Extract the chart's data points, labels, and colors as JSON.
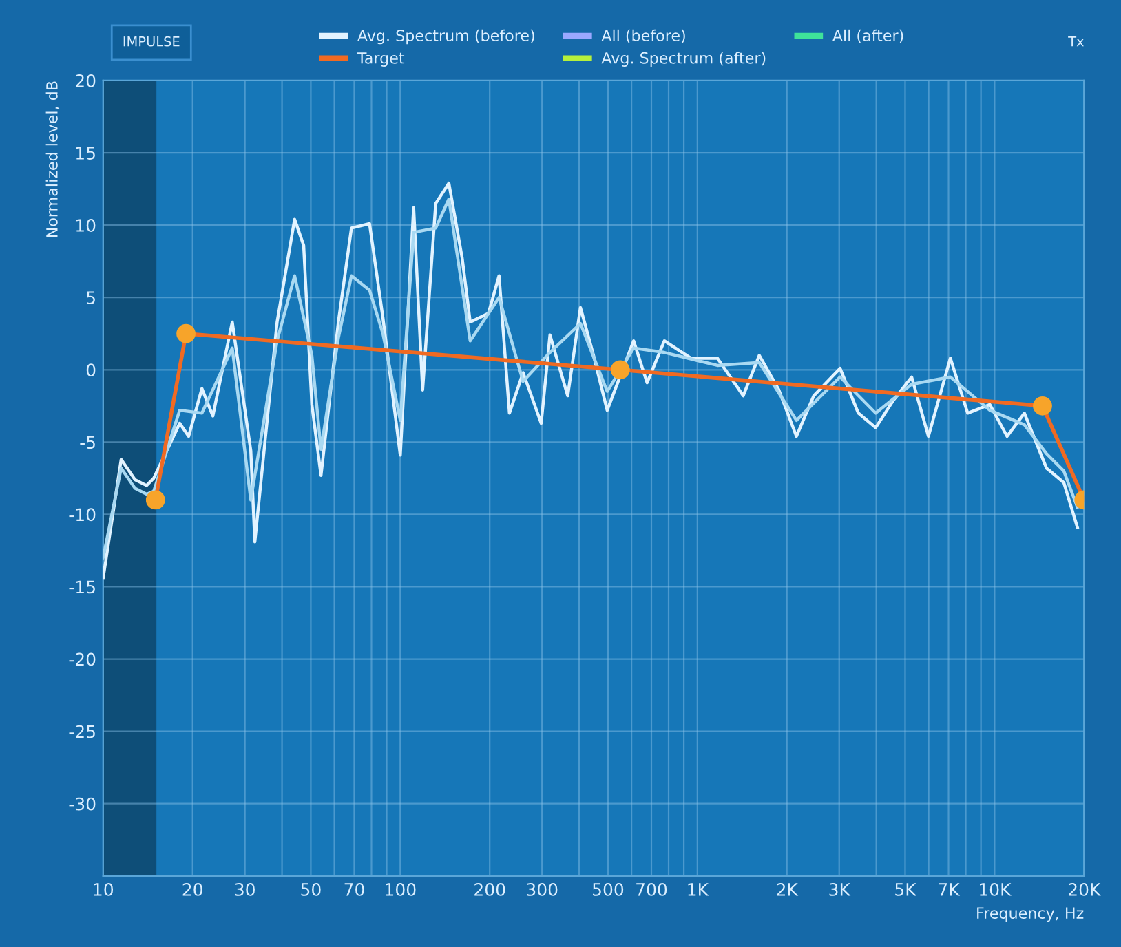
{
  "chart_data": {
    "type": "line",
    "xlabel": "Frequency, Hz",
    "ylabel": "Normalized level, dB",
    "log": "x",
    "xlim": [
      10,
      20000
    ],
    "ylim": [
      -35,
      20
    ],
    "xticks": [
      10,
      20,
      30,
      50,
      70,
      100,
      200,
      300,
      500,
      700,
      {
        "value": 1000,
        "label": "1K"
      },
      {
        "value": 2000,
        "label": "2K"
      },
      {
        "value": 3000,
        "label": "3K"
      },
      {
        "value": 5000,
        "label": "5K"
      },
      {
        "value": 7000,
        "label": "7K"
      },
      {
        "value": 10000,
        "label": "10K"
      },
      {
        "value": 20000,
        "label": "20K"
      }
    ],
    "yticks": [
      -30,
      -25,
      -20,
      -15,
      -10,
      -5,
      0,
      5,
      10,
      15,
      20
    ],
    "grid": true,
    "legend": "top",
    "line_style": "solid",
    "bands": [
      {
        "axis": "x",
        "from": 10,
        "to": 15,
        "color": "#0e4e78"
      }
    ],
    "annotations": [
      "IMPULSE",
      "Tx"
    ],
    "series": [
      {
        "name": "Avg. Spectrum (before)",
        "color": "#e2f3ff",
        "x": [
          10,
          11.5,
          12.8,
          14,
          14.8,
          18.1,
          19.4,
          21.5,
          23.4,
          27.2,
          31.4,
          32.4,
          38.5,
          44.1,
          47.3,
          50.4,
          54.1,
          61.9,
          68.5,
          78.8,
          87.4,
          100,
          110.9,
          118.9,
          131.6,
          145.7,
          161.6,
          171.9,
          198,
          215,
          233,
          259,
          298,
          319,
          366,
          404,
          447,
          497,
          610,
          677,
          774,
          951,
          1168,
          1426,
          1615,
          1880,
          2154,
          2463,
          3020,
          3480,
          3980,
          4570,
          5260,
          5990,
          7100,
          8120,
          9640,
          11020,
          12600,
          14950,
          17100,
          19000
        ],
        "values": [
          -14.4,
          -6.2,
          -7.6,
          -8,
          -7.5,
          -3.7,
          -4.6,
          -1.3,
          -3.2,
          3.3,
          -5.6,
          -11.9,
          3.3,
          10.4,
          8.6,
          -2.4,
          -7.3,
          3.3,
          9.8,
          10.1,
          3.6,
          -5.9,
          11.2,
          -1.4,
          11.5,
          12.9,
          7.7,
          3.3,
          3.9,
          6.5,
          -3,
          -0.2,
          -3.7,
          2.4,
          -1.8,
          4.3,
          1,
          -2.8,
          2,
          -0.9,
          2,
          0.8,
          0.8,
          -1.8,
          1,
          -1.4,
          -4.6,
          -1.8,
          0.1,
          -3,
          -4,
          -2.1,
          -0.5,
          -4.6,
          0.8,
          -3,
          -2.4,
          -4.6,
          -3,
          -6.8,
          -7.8,
          -10.9
        ]
      },
      {
        "color": "#a9d9f2",
        "x": [
          10,
          11.5,
          12.8,
          14,
          14.8,
          18.1,
          21.5,
          27.2,
          31.4,
          38.5,
          44.1,
          50.4,
          54.1,
          61.9,
          68.5,
          78.8,
          87.4,
          100,
          110.9,
          131.6,
          145.7,
          171.9,
          215,
          259,
          319,
          404,
          497,
          610,
          774,
          1168,
          1615,
          2154,
          3020,
          3980,
          5260,
          7100,
          9640,
          12600,
          14950,
          17100,
          19000
        ],
        "values": [
          -13,
          -6.8,
          -8.2,
          -8.6,
          -8.4,
          -2.8,
          -3,
          1.5,
          -9,
          2,
          6.5,
          1,
          -5.5,
          2.2,
          6.5,
          5.5,
          2.5,
          -3.5,
          9.5,
          9.8,
          11.8,
          2,
          5,
          -0.8,
          1.2,
          3.2,
          -1.5,
          1.5,
          1.2,
          0.3,
          0.5,
          -3.5,
          -0.5,
          -3,
          -1,
          -0.5,
          -2.8,
          -3.8,
          -5.8,
          -7,
          -9.5
        ]
      },
      {
        "name": "Target",
        "color": "#f06a22",
        "marker": "circle",
        "x": [
          15,
          19,
          550,
          14500,
          20000
        ],
        "values": [
          -9,
          2.5,
          0,
          -2.5,
          -9
        ]
      },
      {
        "name": "All (before)",
        "color": "#9aa8ff"
      },
      {
        "name": "Avg. Spectrum (after)",
        "color": "#b6f03c"
      },
      {
        "name": "All (after)",
        "color": "#3fe29a"
      }
    ]
  }
}
